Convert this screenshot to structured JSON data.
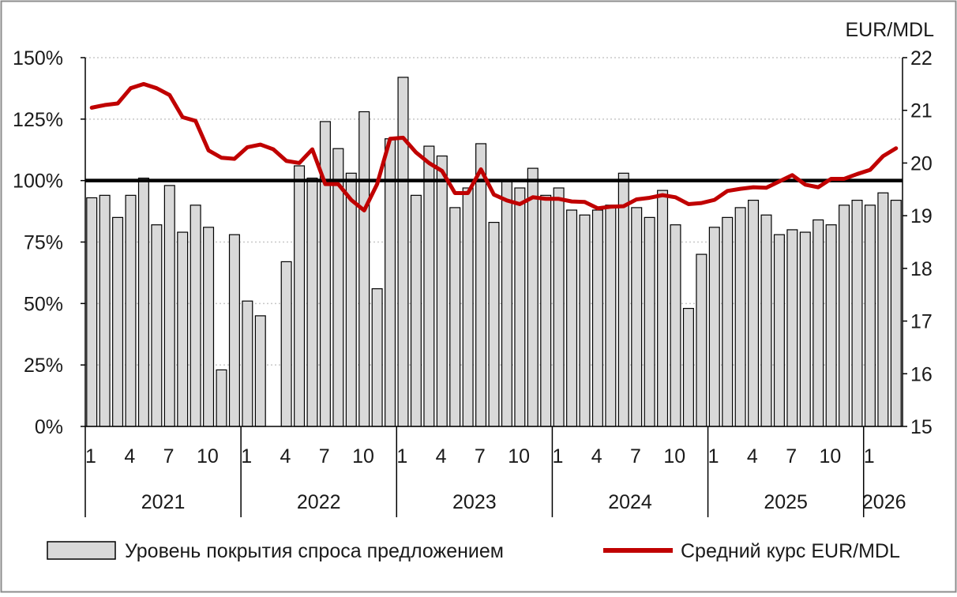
{
  "chart_data": {
    "type": "bar+line",
    "right_axis_title": "EUR/MDL",
    "left_axis": {
      "ylim": [
        0,
        150
      ],
      "ticks": [
        "0%",
        "25%",
        "50%",
        "75%",
        "100%",
        "125%",
        "150%"
      ]
    },
    "right_axis": {
      "ylim": [
        15,
        22
      ],
      "ticks": [
        "15",
        "16",
        "17",
        "18",
        "19",
        "20",
        "21",
        "22"
      ]
    },
    "reference_line": {
      "axis": "left",
      "value": 100,
      "color": "#000000"
    },
    "month_labels": [
      "1",
      "4",
      "7",
      "10"
    ],
    "years": [
      "2021",
      "2022",
      "2023",
      "2024",
      "2025",
      "2026"
    ],
    "grid": "horizontal dotted",
    "legend_position": "bottom",
    "colors": {
      "bars_fill": "#d9d9d9",
      "bars_stroke": "#000000",
      "line": "#c00000"
    },
    "series": [
      {
        "name": "Уровень покрытия спроса предложением",
        "type": "bar",
        "axis": "left",
        "values": [
          93,
          94,
          85,
          94,
          101,
          82,
          98,
          79,
          90,
          81,
          23,
          78,
          51,
          45,
          null,
          67,
          106,
          101,
          124,
          113,
          103,
          128,
          56,
          117,
          142,
          94,
          114,
          110,
          89,
          97,
          115,
          83,
          100,
          97,
          105,
          94,
          97,
          88,
          86,
          88,
          90,
          103,
          89,
          85,
          96,
          82,
          48,
          70,
          81,
          85,
          89,
          92,
          86,
          78,
          80,
          79,
          84,
          82,
          90,
          92,
          90,
          95,
          92
        ]
      },
      {
        "name": "Средний курс EUR/MDL",
        "type": "line",
        "axis": "right",
        "values": [
          21.05,
          21.1,
          21.13,
          21.42,
          21.5,
          21.42,
          21.29,
          20.87,
          20.8,
          20.24,
          20.1,
          20.08,
          20.3,
          20.35,
          20.26,
          20.04,
          20.0,
          20.26,
          19.6,
          19.6,
          19.3,
          19.1,
          19.6,
          20.46,
          20.48,
          20.2,
          20.0,
          19.85,
          19.43,
          19.43,
          19.88,
          19.4,
          19.29,
          19.22,
          19.35,
          19.32,
          19.32,
          19.27,
          19.26,
          19.14,
          19.17,
          19.18,
          19.31,
          19.34,
          19.39,
          19.35,
          19.22,
          19.24,
          19.3,
          19.47,
          19.51,
          19.54,
          19.53,
          19.65,
          19.77,
          19.59,
          19.54,
          19.7,
          19.7,
          19.79,
          19.87,
          20.13,
          20.28
        ]
      }
    ]
  }
}
